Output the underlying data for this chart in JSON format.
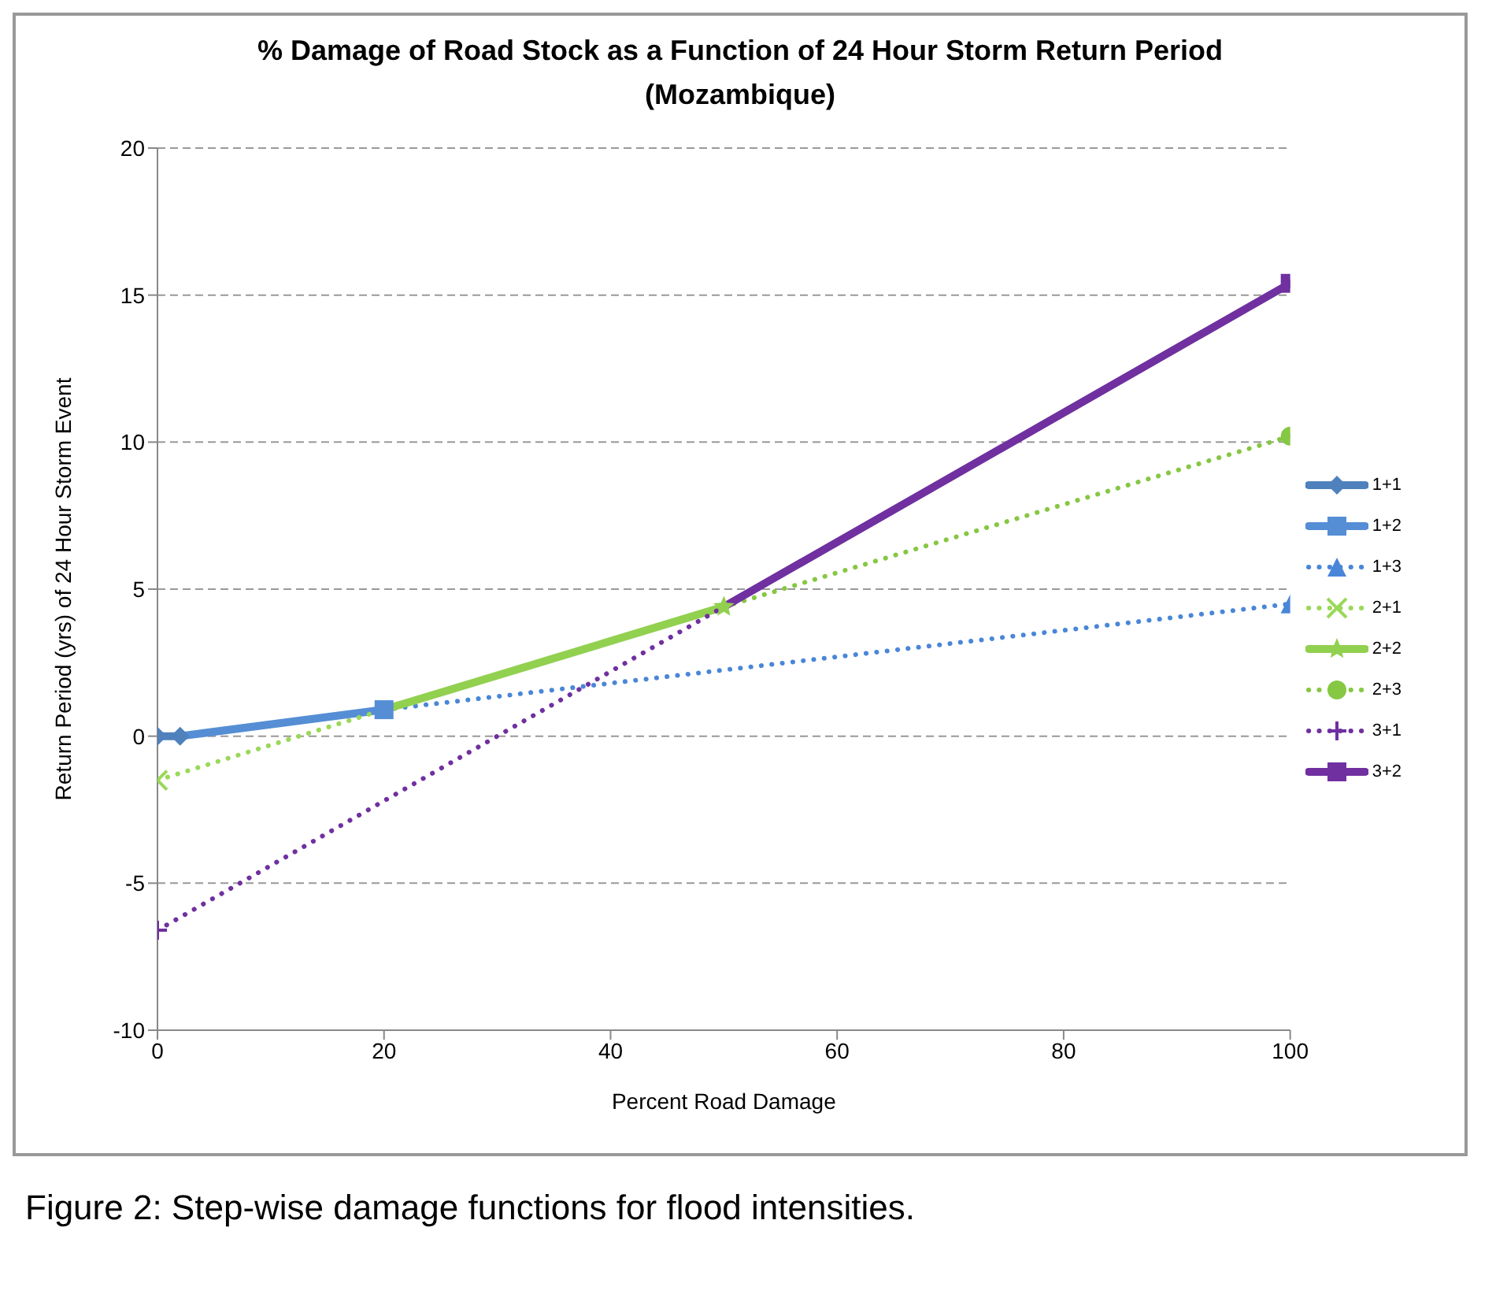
{
  "chart_data": {
    "type": "line",
    "title": "% Damage of Road Stock as a Function of 24 Hour Storm Return Period",
    "subtitle": "(Mozambique)",
    "xlabel": "Percent Road Damage",
    "ylabel": "Return Period (yrs) of 24 Hour Storm Event",
    "xlim": [
      0,
      100
    ],
    "xticks": [
      0,
      20,
      40,
      60,
      80,
      100
    ],
    "ylim": [
      -10,
      20
    ],
    "yticks": [
      -10,
      -5,
      0,
      5,
      10,
      15,
      20
    ],
    "grid": "y",
    "legend": "right",
    "annotations": [
      "Figure 2: Step-wise damage functions for flood intensities."
    ],
    "series": [
      {
        "name": "1+1",
        "color": "#4f81bd",
        "x": [
          0,
          2
        ],
        "values": [
          0,
          0
        ],
        "marker": "diamond",
        "line_style": "solid"
      },
      {
        "name": "1+2",
        "color": "#558ed5",
        "x": [
          2,
          20
        ],
        "values": [
          0,
          0.9
        ],
        "marker": "square",
        "line_style": "solid"
      },
      {
        "name": "1+3",
        "color": "#4a86d8",
        "x": [
          20,
          100
        ],
        "values": [
          0.9,
          4.5
        ],
        "marker": "triangle",
        "line_style": "dotted"
      },
      {
        "name": "2+1",
        "color": "#9ad85a",
        "x": [
          0,
          20
        ],
        "values": [
          -1.5,
          0.9
        ],
        "marker": "cross",
        "line_style": "dotted"
      },
      {
        "name": "2+2",
        "color": "#92d050",
        "x": [
          20,
          50
        ],
        "values": [
          0.9,
          4.4
        ],
        "marker": "star",
        "line_style": "solid"
      },
      {
        "name": "2+3",
        "color": "#86c743",
        "x": [
          50,
          100
        ],
        "values": [
          4.4,
          10.2
        ],
        "marker": "circle",
        "line_style": "dotted"
      },
      {
        "name": "3+1",
        "color": "#7030a0",
        "x": [
          0,
          50
        ],
        "values": [
          -6.6,
          4.4
        ],
        "marker": "cross",
        "line_style": "dotted"
      },
      {
        "name": "3+2",
        "color": "#7030a0",
        "x": [
          50,
          100
        ],
        "values": [
          4.4,
          15.4
        ],
        "marker": "square",
        "line_style": "solid"
      }
    ]
  }
}
